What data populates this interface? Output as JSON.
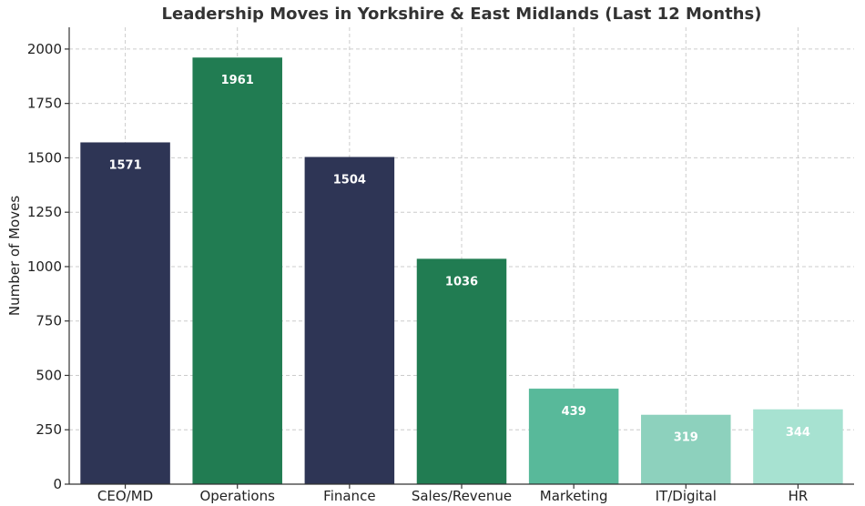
{
  "chart_data": {
    "type": "bar",
    "title": "Leadership Moves in Yorkshire & East Midlands (Last 12 Months)",
    "xlabel": "",
    "ylabel": "Number of Moves",
    "ylim": [
      0,
      2100
    ],
    "yticks": [
      0,
      250,
      500,
      750,
      1000,
      1250,
      1500,
      1750,
      2000
    ],
    "grid": true,
    "categories": [
      "CEO/MD",
      "Operations",
      "Finance",
      "Sales/Revenue",
      "Marketing",
      "IT/Digital",
      "HR"
    ],
    "values": [
      1571,
      1961,
      1504,
      1036,
      439,
      319,
      344
    ],
    "data_labels": [
      "1571",
      "1961",
      "1504",
      "1036",
      "439",
      "319",
      "344"
    ],
    "colors": [
      "#2e3555",
      "#217c52",
      "#2e3555",
      "#217c52",
      "#58b99a",
      "#8dd1bd",
      "#a7e2d1"
    ]
  }
}
